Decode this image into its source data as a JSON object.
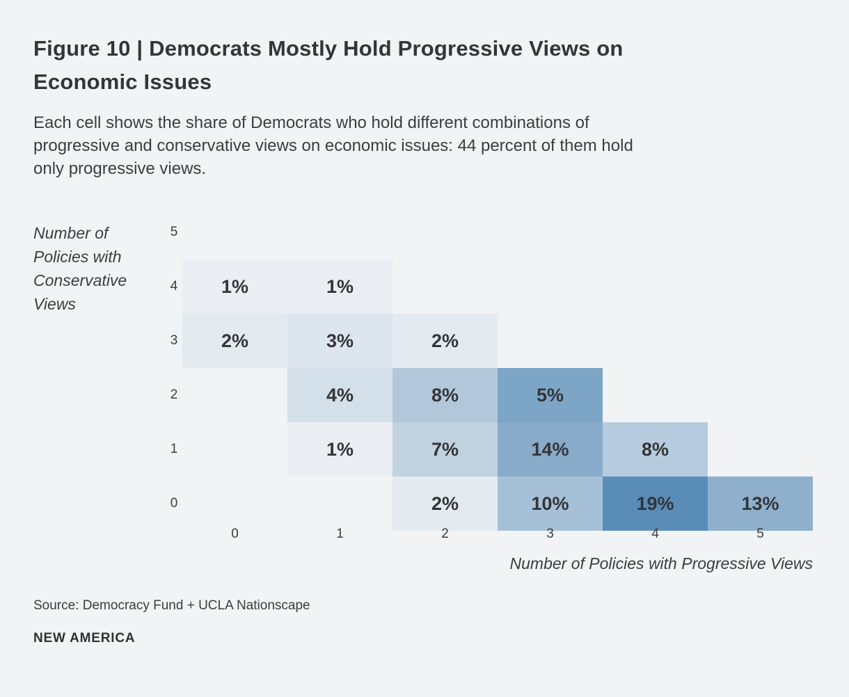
{
  "figure": {
    "title_lines": [
      "Figure 10 | Democrats Mostly Hold Progressive Views on",
      "Economic Issues"
    ],
    "subtitle_lines": [
      "Each cell shows the share of Democrats who hold different combinations of",
      "progressive and conservative views on economic issues: 44 percent of them hold",
      "only progressive views."
    ],
    "source": "Source: Democracy Fund + UCLA Nationscape",
    "brand": "NEW AMERICA"
  },
  "colors": {
    "background": "#f2f3f4",
    "title_text": "#333538",
    "body_text": "#3a3d40",
    "cell_text": "#333538"
  },
  "chart_data": {
    "type": "heatmap",
    "title": "Figure 10 | Democrats Mostly Hold Progressive Views on Economic Issues",
    "xlabel": "Number of Policies with Progressive Views",
    "ylabel": "Number of Policies with Conservative Views",
    "ylabel_lines": [
      "Number of",
      "Policies with",
      "Conservative",
      "Views"
    ],
    "x_ticks": [
      "0",
      "1",
      "2",
      "3",
      "4",
      "5"
    ],
    "y_ticks": [
      "5",
      "4",
      "3",
      "2",
      "1",
      "0"
    ],
    "x_range": [
      0,
      5
    ],
    "y_range": [
      0,
      5
    ],
    "unit": "percent of Democrats",
    "cells": [
      {
        "progressive": 0,
        "conservative": 4,
        "value": 1,
        "label": "1%",
        "color": "#eaeef3"
      },
      {
        "progressive": 1,
        "conservative": 4,
        "value": 1,
        "label": "1%",
        "color": "#eaeef3"
      },
      {
        "progressive": 0,
        "conservative": 3,
        "value": 2,
        "label": "2%",
        "color": "#e3eaf0"
      },
      {
        "progressive": 1,
        "conservative": 3,
        "value": 3,
        "label": "3%",
        "color": "#dde6ee"
      },
      {
        "progressive": 2,
        "conservative": 3,
        "value": 2,
        "label": "2%",
        "color": "#e3eaf0"
      },
      {
        "progressive": 1,
        "conservative": 2,
        "value": 4,
        "label": "4%",
        "color": "#d3dfe9"
      },
      {
        "progressive": 2,
        "conservative": 2,
        "value": 8,
        "label": "8%",
        "color": "#b2c8da"
      },
      {
        "progressive": 3,
        "conservative": 2,
        "value": 5,
        "label": "5%",
        "color": "#7da5c6"
      },
      {
        "progressive": 1,
        "conservative": 1,
        "value": 1,
        "label": "1%",
        "color": "#eaeef3"
      },
      {
        "progressive": 2,
        "conservative": 1,
        "value": 7,
        "label": "7%",
        "color": "#c0d2e0"
      },
      {
        "progressive": 3,
        "conservative": 1,
        "value": 14,
        "label": "14%",
        "color": "#88abc9"
      },
      {
        "progressive": 4,
        "conservative": 1,
        "value": 8,
        "label": "8%",
        "color": "#b6ccde"
      },
      {
        "progressive": 2,
        "conservative": 0,
        "value": 2,
        "label": "2%",
        "color": "#e3eaf0"
      },
      {
        "progressive": 3,
        "conservative": 0,
        "value": 10,
        "label": "10%",
        "color": "#a5c0d7"
      },
      {
        "progressive": 4,
        "conservative": 0,
        "value": 19,
        "label": "19%",
        "color": "#5a8cb8"
      },
      {
        "progressive": 5,
        "conservative": 0,
        "value": 13,
        "label": "13%",
        "color": "#8eb0cd"
      }
    ]
  }
}
